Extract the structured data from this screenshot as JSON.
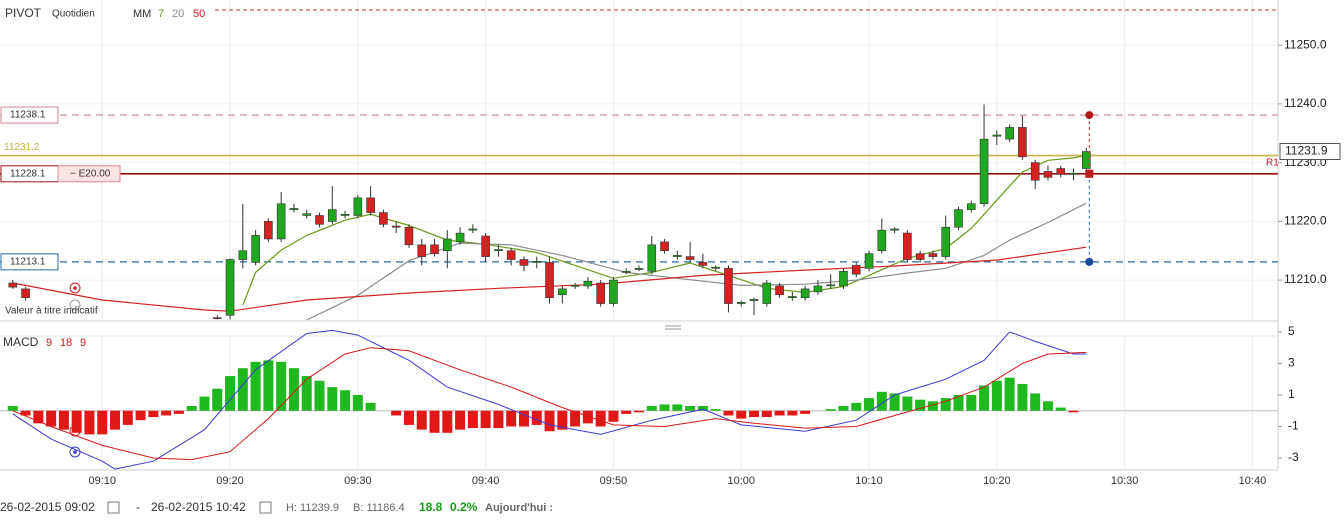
{
  "chart_data": [
    {
      "type": "candlestick",
      "title": "PIVOT",
      "subtitle": "Quotidien",
      "indicator": "MM",
      "note": "Valeur à titre indicatif",
      "pivot_label": "R1",
      "up_color": "#1fa81f",
      "down_color": "#d42222",
      "xlim": [
        "09:02",
        "10:42"
      ],
      "xticks": [
        "09:10",
        "09:20",
        "09:30",
        "09:40",
        "09:50",
        "10:00",
        "10:10",
        "10:20",
        "10:30",
        "10:40"
      ],
      "ylim": [
        11203.2,
        11257.7
      ],
      "yticks": [
        {
          "value": 11210,
          "label": "11210.0"
        },
        {
          "value": 11220,
          "label": "11220.0"
        },
        {
          "value": 11230,
          "label": "11230.0"
        },
        {
          "value": 11240,
          "label": "11240.0"
        },
        {
          "value": 11250,
          "label": "11250.0"
        }
      ],
      "grid": true,
      "x": [
        "09:03",
        "09:04",
        "09:19",
        "09:20",
        "09:21",
        "09:22",
        "09:23",
        "09:24",
        "09:25",
        "09:26",
        "09:27",
        "09:28",
        "09:29",
        "09:30",
        "09:31",
        "09:32",
        "09:33",
        "09:34",
        "09:35",
        "09:36",
        "09:37",
        "09:38",
        "09:39",
        "09:40",
        "09:41",
        "09:42",
        "09:43",
        "09:44",
        "09:45",
        "09:46",
        "09:47",
        "09:48",
        "09:49",
        "09:50",
        "09:51",
        "09:52",
        "09:53",
        "09:54",
        "09:55",
        "09:56",
        "09:57",
        "09:58",
        "09:59",
        "10:00",
        "10:01",
        "10:02",
        "10:03",
        "10:04",
        "10:05",
        "10:06",
        "10:07",
        "10:08",
        "10:09",
        "10:10",
        "10:11",
        "10:12",
        "10:13",
        "10:14",
        "10:15",
        "10:16",
        "10:17",
        "10:18",
        "10:19",
        "10:20",
        "10:21",
        "10:22",
        "10:23",
        "10:24",
        "10:25",
        "10:26",
        "10:27"
      ],
      "open": [
        11209.5,
        11208.5,
        11203.6,
        11204,
        11213.5,
        11213,
        11220,
        11217,
        11222,
        11221,
        11221,
        11220,
        11221,
        11221,
        11224,
        11221.5,
        11219.2,
        11219,
        11216,
        11216,
        11215,
        11216.5,
        11218.5,
        11217.5,
        11215,
        11215,
        11213.5,
        11213,
        11213,
        11207.5,
        11209,
        11209,
        11209.5,
        11206,
        11211.3,
        11211.8,
        11211.5,
        11216.5,
        11214,
        11214,
        11213,
        11212,
        11212,
        11206,
        11206.5,
        11206,
        11209,
        11207,
        11207,
        11208,
        11209,
        11209,
        11212.5,
        11212,
        11215,
        11218.5,
        11218,
        11214.5,
        11214.5,
        11214,
        11219,
        11222,
        11223,
        11234.5,
        11234,
        11236,
        11230,
        11228.5,
        11229,
        11228,
        11229
      ],
      "high": [
        11210,
        11208.8,
        11204,
        11213.7,
        11223,
        11218.5,
        11220.5,
        11225,
        11223,
        11222,
        11221.5,
        11226,
        11221.8,
        11224.5,
        11226,
        11222,
        11220,
        11219.5,
        11217,
        11217,
        11218.5,
        11219,
        11219.5,
        11218,
        11216,
        11215.5,
        11214,
        11214,
        11214,
        11209,
        11209.5,
        11210.5,
        11210,
        11210.5,
        11212,
        11212.5,
        11217.5,
        11217,
        11215,
        11216.5,
        11214.5,
        11212.5,
        11212.5,
        11206.5,
        11207,
        11210,
        11209.5,
        11208,
        11209,
        11210,
        11211,
        11212,
        11213,
        11215,
        11220.5,
        11219,
        11218.5,
        11215,
        11215,
        11221,
        11222.5,
        11223.5,
        11239.9,
        11235.5,
        11236.5,
        11238,
        11230.5,
        11229.5,
        11229.5,
        11229,
        11232.5
      ],
      "low": [
        11208.5,
        11206.5,
        11203.3,
        11203.3,
        11212,
        11212.5,
        11216.5,
        11216.5,
        11221.5,
        11220.5,
        11219,
        11219.5,
        11220.5,
        11220.5,
        11221,
        11219,
        11218,
        11215.5,
        11212.5,
        11214,
        11212,
        11216,
        11218,
        11213,
        11214,
        11212.5,
        11211.5,
        11212,
        11206,
        11206,
        11208.5,
        11208.5,
        11205.5,
        11205.5,
        11211,
        11211.5,
        11211,
        11214.5,
        11213.5,
        11213,
        11212,
        11211.5,
        11204.5,
        11205.5,
        11204,
        11205.5,
        11207,
        11206.5,
        11206.5,
        11207.5,
        11208.5,
        11208.5,
        11210.5,
        11211.5,
        11214.5,
        11218,
        11213,
        11213,
        11213.5,
        11213.5,
        11218.5,
        11221.5,
        11222.5,
        11233,
        11233.5,
        11230.5,
        11225.5,
        11227,
        11227.5,
        11227,
        11228.1
      ],
      "close": [
        11208.8,
        11207,
        11203.5,
        11213.5,
        11215,
        11217.6,
        11217,
        11223,
        11222.2,
        11221.3,
        11219.5,
        11222,
        11221.2,
        11224,
        11221.5,
        11219.5,
        11219,
        11216,
        11214,
        11214.5,
        11217,
        11218,
        11218.7,
        11214,
        11215.2,
        11213.5,
        11212.5,
        11213.2,
        11207,
        11208.5,
        11209.1,
        11209.8,
        11206,
        11210,
        11211.5,
        11212,
        11216,
        11215,
        11214.2,
        11213.5,
        11212.5,
        11212.2,
        11206,
        11206.2,
        11206.7,
        11209.5,
        11207.5,
        11207.2,
        11208.5,
        11209,
        11209.2,
        11211.5,
        11211,
        11214.5,
        11218.5,
        11218.7,
        11213.5,
        11213.5,
        11214,
        11219,
        11222,
        11223,
        11234,
        11234.7,
        11236,
        11231,
        11227,
        11227.5,
        11228,
        11228.2,
        11231.9
      ],
      "series": [
        {
          "name": "7",
          "color": "#6a9a1a",
          "x": [
            "09:21",
            "09:22",
            "09:24",
            "09:26",
            "09:29",
            "09:31",
            "09:34",
            "09:37",
            "09:40",
            "09:44",
            "09:47",
            "09:50",
            "09:53",
            "09:56",
            "09:59",
            "10:02",
            "10:05",
            "10:08",
            "10:10",
            "10:13",
            "10:16",
            "10:18",
            "10:20",
            "10:22",
            "10:24",
            "10:26",
            "10:27"
          ],
          "values": [
            11205.7,
            11211.3,
            11215.1,
            11217.6,
            11220.2,
            11221.2,
            11219.3,
            11216.8,
            11216.1,
            11214.7,
            11212.5,
            11210.3,
            11211.3,
            11212.9,
            11210.8,
            11208.6,
            11207.9,
            11208.9,
            11210.8,
            11213.7,
            11215.4,
            11218.8,
            11223.6,
            11228.4,
            11230.4,
            11230.8,
            11231.3
          ]
        },
        {
          "name": "20",
          "color": "#8c8c8c",
          "x": [
            "09:26",
            "09:30",
            "09:34",
            "09:38",
            "09:42",
            "09:46",
            "09:51",
            "09:55",
            "10:00",
            "10:05",
            "10:09",
            "10:13",
            "10:16",
            "10:19",
            "10:21",
            "10:24",
            "10:27"
          ],
          "values": [
            11203.2,
            11207.4,
            11213.3,
            11216.3,
            11216,
            11214.2,
            11211.3,
            11210.3,
            11209.1,
            11209.3,
            11210,
            11211.2,
            11212,
            11214.2,
            11216.8,
            11219.8,
            11223.1
          ]
        },
        {
          "name": "50",
          "color": "#d42222",
          "x": [
            "09:03",
            "09:10",
            "09:18",
            "09:20",
            "09:26",
            "09:34",
            "09:41",
            "09:49",
            "09:57",
            "10:05",
            "10:12",
            "10:20",
            "10:27"
          ],
          "values": [
            11209.5,
            11206.6,
            11204.9,
            11204.7,
            11206.6,
            11207.8,
            11208.6,
            11209.3,
            11210.8,
            11211.7,
            11212.4,
            11213.4,
            11215.6
          ]
        }
      ],
      "top_line": {
        "value": 11256,
        "color": "#c03030"
      },
      "levels": [
        {
          "value": 11238.1,
          "color": "#c9878f",
          "dashed": true,
          "boxed": true,
          "marker": "circle",
          "marker_color": "#b01818"
        },
        {
          "value": 11231.2,
          "color": "#c9b04a",
          "dashed": false,
          "boxed": false
        },
        {
          "value": 11228.1,
          "color": "#9a1010",
          "dashed": false,
          "boxed": true,
          "order": "− E20.00",
          "marker": "square",
          "marker_color": "#c01a1a"
        },
        {
          "value": 11213.1,
          "color": "#2a6aa8",
          "dashed": true,
          "boxed": true,
          "marker": "circle",
          "marker_color": "#1a4a9a"
        }
      ],
      "last": 11231.9
    },
    {
      "type": "macd",
      "title": "MACD",
      "params": [
        9,
        18,
        9
      ],
      "up_color": "#1fb81f",
      "down_color": "#e01818",
      "ylim": [
        -3.76,
        5.44
      ],
      "yticks": [
        -3,
        -1,
        1,
        3,
        5
      ],
      "x": [
        "09:03",
        "09:04",
        "09:05",
        "09:06",
        "09:07",
        "09:08",
        "09:09",
        "09:10",
        "09:11",
        "09:12",
        "09:13",
        "09:14",
        "09:15",
        "09:16",
        "09:17",
        "09:18",
        "09:19",
        "09:20",
        "09:21",
        "09:22",
        "09:23",
        "09:24",
        "09:25",
        "09:26",
        "09:27",
        "09:28",
        "09:29",
        "09:30",
        "09:31",
        "09:32",
        "09:33",
        "09:34",
        "09:35",
        "09:36",
        "09:37",
        "09:38",
        "09:39",
        "09:40",
        "09:41",
        "09:42",
        "09:43",
        "09:44",
        "09:45",
        "09:46",
        "09:47",
        "09:48",
        "09:49",
        "09:50",
        "09:51",
        "09:52",
        "09:53",
        "09:54",
        "09:55",
        "09:56",
        "09:57",
        "09:58",
        "09:59",
        "10:00",
        "10:01",
        "10:02",
        "10:03",
        "10:04",
        "10:05",
        "10:06",
        "10:07",
        "10:08",
        "10:09",
        "10:10",
        "10:11",
        "10:12",
        "10:13",
        "10:14",
        "10:15",
        "10:16",
        "10:17",
        "10:18",
        "10:19",
        "10:20",
        "10:21",
        "10:22",
        "10:23",
        "10:24",
        "10:25",
        "10:26"
      ],
      "values": [
        0.3,
        -0.3,
        -0.8,
        -1.0,
        -1.2,
        -1.4,
        -1.5,
        -1.5,
        -1.2,
        -0.9,
        -0.6,
        -0.4,
        -0.3,
        -0.2,
        0.3,
        0.9,
        1.4,
        2.2,
        2.7,
        3.1,
        3.2,
        3.1,
        2.7,
        2.2,
        1.9,
        1.5,
        1.3,
        1.0,
        0.5,
        0.0,
        -0.3,
        -0.9,
        -1.2,
        -1.4,
        -1.4,
        -1.2,
        -1.1,
        -1.1,
        -1.1,
        -1.0,
        -1.0,
        -0.9,
        -1.3,
        -1.2,
        -1.0,
        -0.8,
        -1.0,
        -0.7,
        -0.2,
        -0.1,
        0.3,
        0.4,
        0.4,
        0.3,
        0.3,
        0.1,
        -0.3,
        -0.5,
        -0.4,
        -0.4,
        -0.3,
        -0.3,
        -0.2,
        0.0,
        0.1,
        0.3,
        0.5,
        0.8,
        1.2,
        1.1,
        0.9,
        0.7,
        0.6,
        0.8,
        1.0,
        1.0,
        1.6,
        1.9,
        2.1,
        1.7,
        1.1,
        0.6,
        0.2,
        -0.1
      ],
      "series": [
        {
          "color": "#3a3ad0",
          "x": [
            "09:03",
            "09:06",
            "09:10",
            "09:11",
            "09:14",
            "09:18",
            "09:22",
            "09:26",
            "09:28",
            "09:30",
            "09:34",
            "09:37",
            "09:41",
            "09:45",
            "09:49",
            "09:53",
            "09:57",
            "10:00",
            "10:05",
            "10:09",
            "10:12",
            "10:16",
            "10:19",
            "10:21",
            "10:23",
            "10:26",
            "10:27"
          ],
          "values": [
            -0.2,
            -1.8,
            -3.2,
            -3.7,
            -3.2,
            -1.2,
            2.6,
            4.9,
            5.1,
            4.8,
            3.2,
            1.5,
            0.4,
            -0.9,
            -1.5,
            -0.6,
            0.1,
            -0.9,
            -1.3,
            -0.6,
            1.0,
            2.0,
            3.2,
            5.0,
            4.4,
            3.6,
            3.6
          ]
        },
        {
          "color": "#d41818",
          "x": [
            "09:03",
            "09:06",
            "09:10",
            "09:14",
            "09:17",
            "09:20",
            "09:23",
            "09:26",
            "09:29",
            "09:31",
            "09:34",
            "09:38",
            "09:42",
            "09:46",
            "09:50",
            "09:54",
            "09:58",
            "10:01",
            "10:05",
            "10:09",
            "10:12",
            "10:16",
            "10:19",
            "10:22",
            "10:24",
            "10:27"
          ],
          "values": [
            0.0,
            -1.0,
            -2.2,
            -3.0,
            -3.1,
            -2.6,
            -0.5,
            2.0,
            3.6,
            4.0,
            3.8,
            2.6,
            1.5,
            0.2,
            -0.9,
            -1.0,
            -0.5,
            -0.8,
            -1.1,
            -1.0,
            -0.3,
            0.6,
            1.5,
            3.0,
            3.6,
            3.7
          ]
        }
      ]
    }
  ],
  "footer": {
    "start": "26-02-2015 09:02",
    "separator": "-",
    "end": "26-02-2015 10:42",
    "high": "H: 11239.9",
    "low": "B: 11186.4",
    "change": "18.8",
    "change_pct": "0.2%",
    "today": "Aujourd'hui :"
  }
}
